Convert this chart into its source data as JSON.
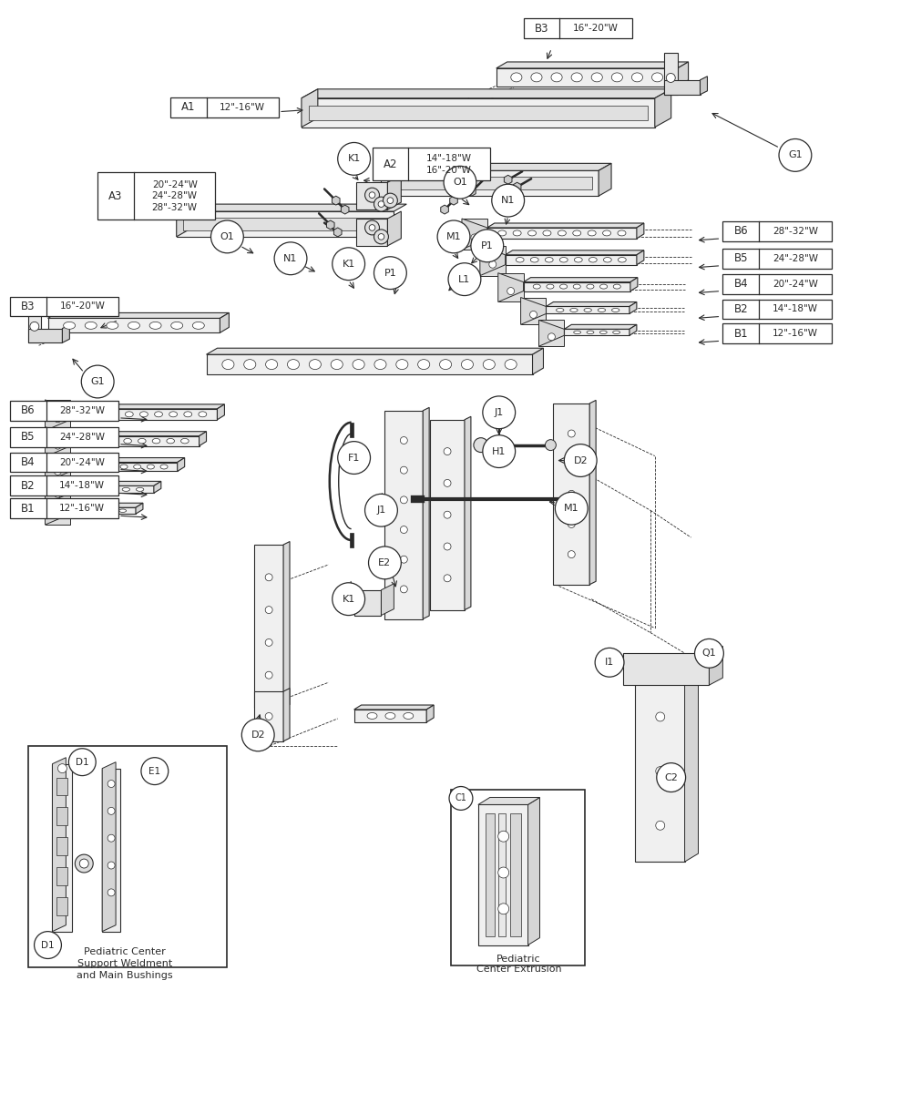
{
  "bg_color": "#ffffff",
  "line_color": "#2a2a2a",
  "label_color": "#1a1a1a",
  "parts": {
    "A1": {
      "label": "A1",
      "desc": "12\"-16\"W"
    },
    "A2": {
      "label": "A2",
      "desc": "14\"-18\"W\n16\"-20\"W"
    },
    "A3": {
      "label": "A3",
      "desc": "20\"-24\"W\n24\"-28\"W\n28\"-32\"W"
    },
    "B1r": {
      "label": "B1",
      "desc": "12\"-16\"W"
    },
    "B2r": {
      "label": "B2",
      "desc": "14\"-18\"W"
    },
    "B3t": {
      "label": "B3",
      "desc": "16\"-20\"W"
    },
    "B3l": {
      "label": "B3",
      "desc": "16\"-20\"W"
    },
    "B4r": {
      "label": "B4",
      "desc": "20\"-24\"W"
    },
    "B5r": {
      "label": "B5",
      "desc": "24\"-28\"W"
    },
    "B6r": {
      "label": "B6",
      "desc": "28\"-32\"W"
    },
    "B1l": {
      "label": "B1",
      "desc": "12\"-16\"W"
    },
    "B2l": {
      "label": "B2",
      "desc": "14\"-18\"W"
    },
    "B4l": {
      "label": "B4",
      "desc": "20\"-24\"W"
    },
    "B5l": {
      "label": "B5",
      "desc": "24\"-28\"W"
    },
    "B6l": {
      "label": "B6",
      "desc": "28\"-32\"W"
    }
  },
  "circle_parts": [
    "G1",
    "K1",
    "N1",
    "O1",
    "M1",
    "P1",
    "L1",
    "F1",
    "H1",
    "J1",
    "E1",
    "D1",
    "C1",
    "C2",
    "D2",
    "E2",
    "Q1",
    "I1"
  ]
}
